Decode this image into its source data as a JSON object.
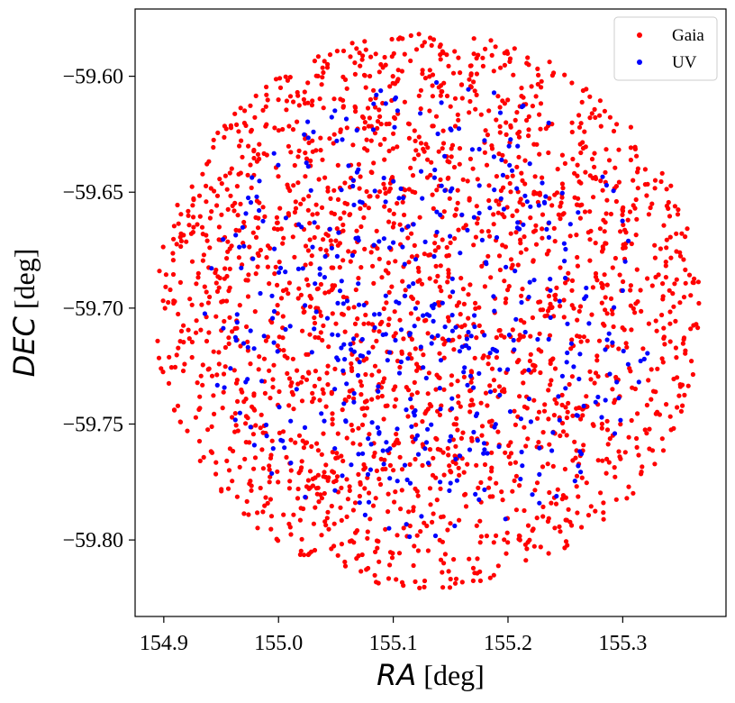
{
  "chart_data": {
    "type": "scatter",
    "x_label": {
      "math": "RA",
      "unit": " [deg]"
    },
    "y_label": {
      "math": "DEC",
      "unit": " [deg]"
    },
    "xlim": [
      154.875,
      155.39
    ],
    "ylim": [
      -59.833,
      -59.571
    ],
    "x_ticks": [
      154.9,
      155.0,
      155.1,
      155.2,
      155.3
    ],
    "x_tick_labels": [
      "154.9",
      "155.0",
      "155.1",
      "155.2",
      "155.3"
    ],
    "y_ticks": [
      -59.6,
      -59.65,
      -59.7,
      -59.75,
      -59.8
    ],
    "y_tick_labels": [
      "−59.60",
      "−59.65",
      "−59.70",
      "−59.75",
      "−59.80"
    ],
    "grid": false,
    "legend_position": "top-right",
    "field_center": {
      "ra": 155.13,
      "dec": -59.701
    },
    "field_radius_deg": 0.12,
    "series": [
      {
        "name": "Gaia",
        "color": "#ff0000",
        "count": 2200,
        "distribution": "uniform over circular field",
        "x": [],
        "y": []
      },
      {
        "name": "UV",
        "color": "#0000ff",
        "count": 480,
        "distribution": "concentrated in inner field",
        "x": [],
        "y": []
      }
    ]
  }
}
